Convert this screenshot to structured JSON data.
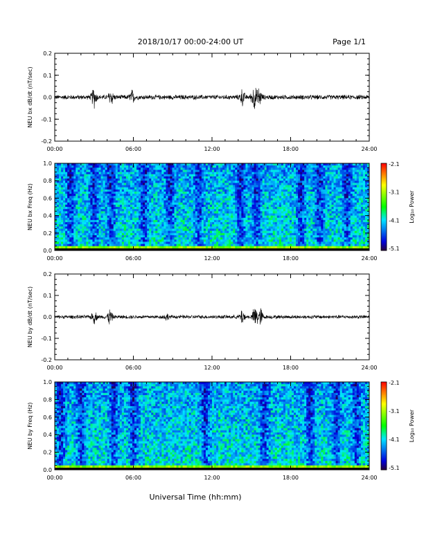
{
  "header": {
    "title": "2018/10/17  00:00-24:00 UT",
    "page": "Page 1/1"
  },
  "footer": {
    "xlabel": "Universal Time (hh:mm)"
  },
  "chart_data": [
    {
      "type": "line",
      "ylabel": "NEU bx dB/dt (nT/sec)",
      "ylim": [
        -0.2,
        0.2
      ],
      "yticks": [
        "0.2",
        "0.1",
        "0.0",
        "-0.1",
        "-0.2"
      ],
      "xticks": [
        "00:00",
        "06:00",
        "12:00",
        "18:00",
        "24:00"
      ],
      "xlim_hours": [
        0,
        24
      ],
      "baseline_amplitude": 0.01,
      "bursts": [
        {
          "center_hour": 3.0,
          "amplitude": 0.04
        },
        {
          "center_hour": 4.3,
          "amplitude": 0.03
        },
        {
          "center_hour": 5.9,
          "amplitude": 0.025
        },
        {
          "center_hour": 14.3,
          "amplitude": 0.03
        },
        {
          "center_hour": 15.2,
          "amplitude": 0.05
        },
        {
          "center_hour": 15.6,
          "amplitude": 0.035
        }
      ]
    },
    {
      "type": "heatmap",
      "ylabel": "NEU bx Freq (Hz)",
      "ylim": [
        0,
        1.0
      ],
      "yticks": [
        "1.0",
        "0.8",
        "0.6",
        "0.4",
        "0.2",
        "0.0"
      ],
      "xticks": [
        "00:00",
        "06:00",
        "12:00",
        "18:00",
        "24:00"
      ],
      "colorbar": {
        "label": "Log₁₀ Power",
        "ticks": [
          "-2.1",
          "-3.1",
          "-4.1",
          "-5.1"
        ],
        "range": [
          -5.1,
          -2.1
        ]
      },
      "dark_bands_hours": [
        1.2,
        3.0,
        4.3,
        6.8,
        8.8,
        11.0,
        14.2,
        15.4,
        18.8,
        20.2,
        22.3
      ]
    },
    {
      "type": "line",
      "ylabel": "NEU by dB/dt (nT/sec)",
      "ylim": [
        -0.2,
        0.2
      ],
      "yticks": [
        "0.2",
        "0.1",
        "0.0",
        "-0.1",
        "-0.2"
      ],
      "xticks": [
        "00:00",
        "06:00",
        "12:00",
        "18:00",
        "24:00"
      ],
      "xlim_hours": [
        0,
        24
      ],
      "baseline_amplitude": 0.008,
      "bursts": [
        {
          "center_hour": 3.0,
          "amplitude": 0.025
        },
        {
          "center_hour": 4.2,
          "amplitude": 0.03
        },
        {
          "center_hour": 8.5,
          "amplitude": 0.012
        },
        {
          "center_hour": 14.3,
          "amplitude": 0.03
        },
        {
          "center_hour": 15.3,
          "amplitude": 0.05
        },
        {
          "center_hour": 15.7,
          "amplitude": 0.035
        }
      ]
    },
    {
      "type": "heatmap",
      "ylabel": "NEU by Freq (Hz)",
      "ylim": [
        0,
        1.0
      ],
      "yticks": [
        "1.0",
        "0.8",
        "0.6",
        "0.4",
        "0.2",
        "0.0"
      ],
      "xticks": [
        "00:00",
        "06:00",
        "12:00",
        "18:00",
        "24:00"
      ],
      "colorbar": {
        "label": "Log₁₀ Power",
        "ticks": [
          "-2.1",
          "-3.1",
          "-4.1",
          "-5.1"
        ],
        "range": [
          -5.1,
          -2.1
        ]
      },
      "dark_bands_hours": [
        0.5,
        2.0,
        4.5,
        6.0,
        11.5,
        16.0,
        19.5,
        21.5,
        23.0
      ]
    }
  ]
}
